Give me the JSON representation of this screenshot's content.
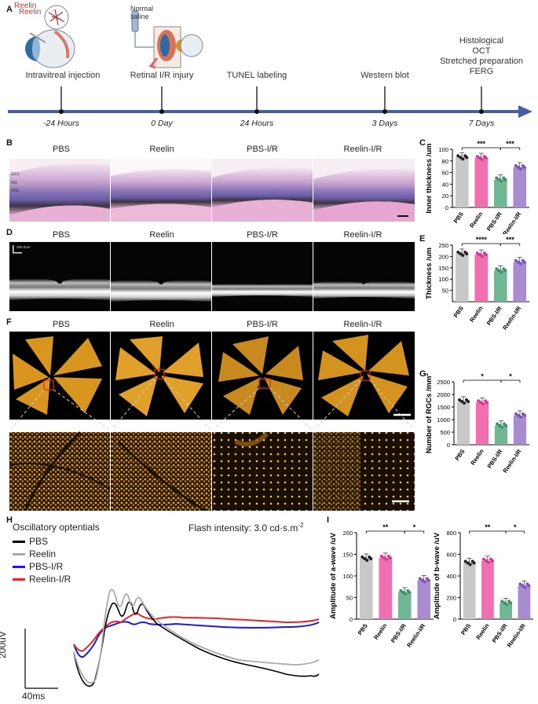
{
  "panels": {
    "A": "A",
    "B": "B",
    "C": "C",
    "D": "D",
    "E": "E",
    "F": "F",
    "G": "G",
    "H": "H",
    "I": "I"
  },
  "timeline": {
    "events": [
      {
        "label": "Intravitreal  injection",
        "time": "-24 Hours"
      },
      {
        "label": "Retinal I/R injury",
        "time": "0 Day"
      },
      {
        "label": "TUNEL labeling",
        "time": "24 Hours"
      },
      {
        "label": "Western blot",
        "time": "3 Days"
      },
      {
        "label": "Histological\nOCT\nStretched preparation\nFERG",
        "time": "7 Days"
      }
    ],
    "icon_reelin": "Reelin",
    "icon_saline": "Normal\nsaline"
  },
  "groups": [
    "PBS",
    "Reelin",
    "PBS-I/R",
    "Reelin-I/R"
  ],
  "panel_b": {
    "layers": [
      "GCL",
      "INL",
      "ONL"
    ]
  },
  "panel_d": {
    "scale_text": "200.0um"
  },
  "oscillatory": {
    "title": "Oscillatory optentials",
    "flash": "Flash intensity: 3.0 cd·s.m",
    "flash_sup": "-2",
    "legend": [
      "PBS",
      "Reelin",
      "PBS-I/R",
      "Reelin-I/R"
    ],
    "scale_v": "200uV",
    "scale_t": "40ms"
  },
  "colors": {
    "timeline": "#4a5da0",
    "pbs": "#c8c8c8",
    "reelin": "#f06fb0",
    "pbs_ir": "#6fb795",
    "reelin_ir": "#a98bd0",
    "he_pink": "#e6a6cf",
    "flatmount": "#d9961f"
  },
  "chart_data": [
    {
      "id": "C",
      "type": "bar",
      "categories": [
        "PBS",
        "Reelin",
        "PBS-I/R",
        "Reelin-I/R"
      ],
      "values": [
        86,
        85,
        48,
        69
      ],
      "ylabel": "Inner thickness /um",
      "ylim": [
        0,
        100
      ],
      "yticks": [
        "0",
        "20",
        "40",
        "60",
        "80",
        "100"
      ],
      "significance": [
        {
          "from": 0,
          "to": 2,
          "label": "***"
        },
        {
          "from": 2,
          "to": 3,
          "label": "***"
        }
      ]
    },
    {
      "id": "E",
      "type": "bar",
      "categories": [
        "PBS",
        "Reelin",
        "PBS-I/R",
        "Reelin-I/R"
      ],
      "values": [
        212,
        208,
        138,
        175
      ],
      "ylabel": "Thickness /um",
      "ylim": [
        0,
        250
      ],
      "yticks": [
        "50",
        "100",
        "150",
        "200",
        "250"
      ],
      "significance": [
        {
          "from": 0,
          "to": 2,
          "label": "****"
        },
        {
          "from": 2,
          "to": 3,
          "label": "***"
        }
      ]
    },
    {
      "id": "G",
      "type": "bar",
      "categories": [
        "PBS",
        "Reelin",
        "PBS-I/R",
        "Reelin-I/R"
      ],
      "values": [
        1720,
        1680,
        760,
        1160
      ],
      "ylabel": "Number of RGCs /mm",
      "ylabel_sup": "2",
      "ylim": [
        0,
        2500
      ],
      "yticks": [
        "0",
        "500",
        "1000",
        "1500",
        "2000",
        "2500"
      ],
      "significance": [
        {
          "from": 0,
          "to": 2,
          "label": "*"
        },
        {
          "from": 2,
          "to": 3,
          "label": "*"
        }
      ]
    },
    {
      "id": "I-a",
      "type": "bar",
      "categories": [
        "PBS",
        "Reelin",
        "PBS-I/R",
        "Reelin-I/R"
      ],
      "values": [
        140,
        142,
        62,
        90
      ],
      "ylabel": "Amplitude of a-wave /uV",
      "ylim": [
        0,
        200
      ],
      "yticks": [
        "0",
        "50",
        "100",
        "150",
        "200"
      ],
      "significance": [
        {
          "from": 0,
          "to": 2,
          "label": "**"
        },
        {
          "from": 2,
          "to": 3,
          "label": "*"
        }
      ]
    },
    {
      "id": "I-b",
      "type": "bar",
      "categories": [
        "PBS",
        "Reelin",
        "PBS-I/R",
        "Reelin-I/R"
      ],
      "values": [
        520,
        540,
        150,
        310
      ],
      "ylabel": "Amplitude of b-wave /uV",
      "ylim": [
        0,
        800
      ],
      "yticks": [
        "0",
        "200",
        "400",
        "600",
        "800"
      ],
      "significance": [
        {
          "from": 0,
          "to": 2,
          "label": "**"
        },
        {
          "from": 2,
          "to": 3,
          "label": "*"
        }
      ]
    }
  ]
}
